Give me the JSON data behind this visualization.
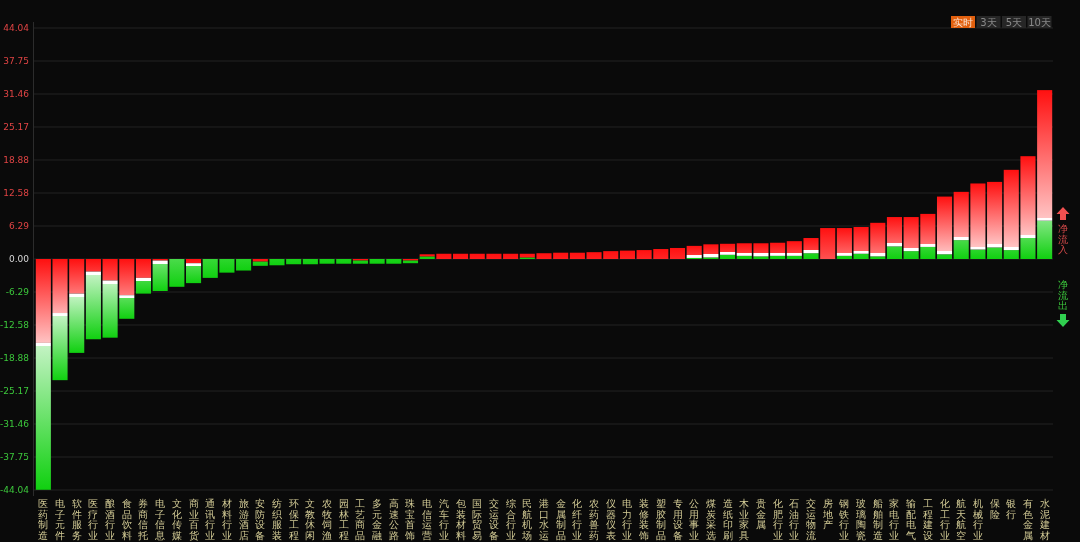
{
  "chart_data": {
    "type": "bar",
    "stacked": true,
    "grid": "y",
    "categories": [
      "医药制造",
      "电子元件",
      "软件服务",
      "医疗行业",
      "酿酒行业",
      "食品饮料",
      "券商信托",
      "电子信息",
      "文化传媒",
      "商业百货",
      "通讯行业",
      "材料行业",
      "旅游酒店",
      "安防设备",
      "纺织服装",
      "环保工程",
      "文教休闲",
      "农牧饲渔",
      "园林工程",
      "工艺商品",
      "多元金融",
      "高速公路",
      "珠宝首饰",
      "电信运营",
      "汽车行业",
      "包装材料",
      "国际贸易",
      "交运设备",
      "综合行业",
      "民航机场",
      "港口水运",
      "金属制品",
      "化纤行业",
      "农药兽药",
      "仪器仪表",
      "电力行业",
      "装修装饰",
      "塑胶制品",
      "专用设备",
      "公用事业",
      "煤炭采选",
      "造纸印刷",
      "木业家具",
      "贵金属",
      "化肥行业",
      "石油行业",
      "交运物流",
      "房地产",
      "钢铁行业",
      "玻璃陶瓷",
      "船舶制造",
      "家电行业",
      "输配电气",
      "工程建设",
      "化工行业",
      "航天航空",
      "机械行业",
      "保险",
      "银行",
      "有色金属",
      "水泥建材"
    ],
    "series": [
      {
        "values": [
          -16.0,
          -10.3,
          -6.6,
          -2.4,
          -4.1,
          -6.9,
          -3.6,
          -0.3,
          0,
          -0.8,
          0,
          0,
          0,
          -0.5,
          0,
          0,
          0,
          0,
          0,
          -0.3,
          0,
          0,
          -0.3,
          0.5,
          0,
          0,
          0,
          0,
          0,
          0.3,
          0,
          0,
          0,
          0,
          0,
          0,
          0,
          0,
          0,
          0.2,
          0.3,
          0.8,
          0.6,
          0.5,
          0.6,
          0.6,
          1.1,
          0,
          0.6,
          1.0,
          0.5,
          2.4,
          1.5,
          2.3,
          0.9,
          3.6,
          1.8,
          2.2,
          1.7,
          4.0,
          7.3
        ],
        "colors": [
          "#ff1010",
          "#ff1010",
          "#ff1010",
          "#ff1010",
          "#ff1010",
          "#ff1010",
          "#ff1010",
          "#ff1010",
          null,
          "#ff1010",
          null,
          null,
          null,
          "#ff1010",
          null,
          null,
          null,
          null,
          null,
          "#ff1010",
          null,
          null,
          "#ff1010",
          "#10d010",
          null,
          null,
          null,
          null,
          null,
          "#10d010",
          null,
          null,
          null,
          null,
          null,
          null,
          null,
          null,
          null,
          "#10d010",
          "#10d010",
          "#10d010",
          "#10d010",
          "#10d010",
          "#10d010",
          "#10d010",
          "#10d010",
          null,
          "#10d010",
          "#10d010",
          "#10d010",
          "#10d010",
          "#10d010",
          "#10d010",
          "#10d010",
          "#10d010",
          "#10d010",
          "#10d010",
          "#10d010",
          "#10d010",
          "#10d010"
        ]
      },
      {
        "values": [
          -28.0,
          -12.8,
          -11.3,
          -12.9,
          -10.9,
          -4.5,
          -3.0,
          -5.8,
          -5.3,
          -3.8,
          -3.6,
          -2.6,
          -2.2,
          -0.8,
          -1.2,
          -1.0,
          -1.0,
          -0.9,
          -0.9,
          -0.6,
          -0.9,
          -0.9,
          -0.5,
          0.4,
          1.0,
          1.0,
          1.0,
          1.0,
          1.0,
          0.7,
          1.1,
          1.2,
          1.2,
          1.3,
          1.5,
          1.6,
          1.7,
          1.9,
          2.1,
          2.3,
          2.5,
          2.1,
          2.4,
          2.5,
          2.5,
          2.8,
          2.9,
          5.9,
          5.3,
          5.1,
          6.4,
          5.6,
          6.5,
          6.3,
          11.0,
          9.2,
          12.6,
          12.5,
          15.3,
          15.6,
          24.9
        ],
        "colors": [
          "#10d010",
          "#10d010",
          "#10d010",
          "#10d010",
          "#10d010",
          "#10d010",
          "#10d010",
          "#10d010",
          "#10d010",
          "#10d010",
          "#10d010",
          "#10d010",
          "#10d010",
          "#10d010",
          "#10d010",
          "#10d010",
          "#10d010",
          "#10d010",
          "#10d010",
          "#10d010",
          "#10d010",
          "#10d010",
          "#10d010",
          "#ff1010",
          "#ff1010",
          "#ff1010",
          "#ff1010",
          "#ff1010",
          "#ff1010",
          "#ff1010",
          "#ff1010",
          "#ff1010",
          "#ff1010",
          "#ff1010",
          "#ff1010",
          "#ff1010",
          "#ff1010",
          "#ff1010",
          "#ff1010",
          "#ff1010",
          "#ff1010",
          "#ff1010",
          "#ff1010",
          "#ff1010",
          "#ff1010",
          "#ff1010",
          "#ff1010",
          "#ff1010",
          "#ff1010",
          "#ff1010",
          "#ff1010",
          "#ff1010",
          "#ff1010",
          "#ff1010",
          "#ff1010",
          "#ff1010",
          "#ff1010",
          "#ff1010",
          "#ff1010",
          "#ff1010",
          "#ff1010"
        ]
      }
    ],
    "ylim": [
      -44.04,
      44.04
    ],
    "yticks": [
      44.04,
      37.75,
      31.46,
      25.17,
      18.88,
      12.58,
      6.29,
      {
        "value": 0,
        "label": "0.00"
      },
      -6.29,
      -12.58,
      -18.88,
      -25.17,
      -31.46,
      -37.75,
      -44.04
    ],
    "annotations": [
      "实时",
      "3天",
      "5天",
      "10天",
      "净流入",
      "净流出"
    ]
  }
}
